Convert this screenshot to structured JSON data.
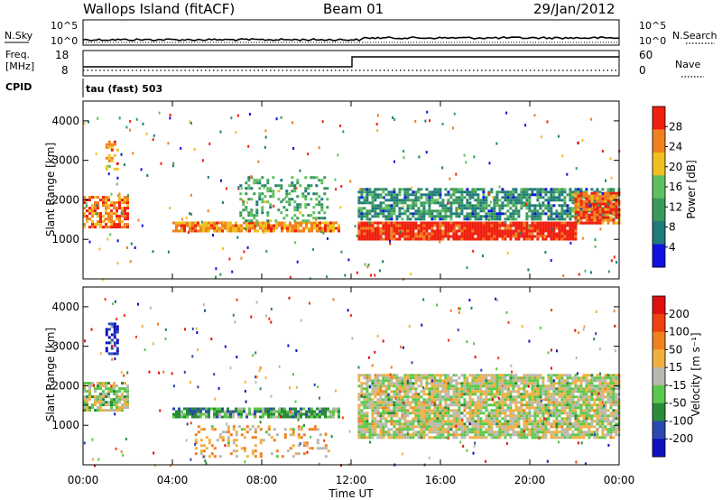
{
  "header": {
    "station": "Wallops Island (fitACF)",
    "beam": "Beam 01",
    "date": "29/Jan/2012"
  },
  "status_panels": {
    "nsky_label": "N.Sky",
    "nsearch_label": "N.Search",
    "noise_ticks_left": [
      "10^5",
      "10^0"
    ],
    "noise_ticks_right": [
      "10^5",
      "10^0"
    ],
    "freq_label_line1": "Freq.",
    "freq_label_line2": "[MHz]",
    "freq_ticks": [
      "18",
      "8"
    ],
    "nave_label": "Nave",
    "nave_ticks": [
      "60",
      "0"
    ],
    "cpid_label": "CPID",
    "cpid_value": "tau (fast) 503"
  },
  "chart_data": [
    {
      "type": "heatmap",
      "name": "power",
      "ylabel": "Slant Range [km]",
      "ylim": [
        0,
        4500
      ],
      "yticks": [
        "1000",
        "2000",
        "3000",
        "4000"
      ],
      "xlim_hours": [
        0,
        24
      ],
      "colorbar_label": "Power [dB]",
      "colorbar_ticks": [
        "28",
        "24",
        "20",
        "16",
        "12",
        "8",
        "4"
      ],
      "colorbar_range": [
        0,
        32
      ],
      "colors": [
        "#1010e0",
        "#1f7a7a",
        "#3a9a5a",
        "#60c060",
        "#f0c020",
        "#f08020",
        "#f02010"
      ],
      "features": [
        {
          "t0": 0.0,
          "t1": 2.0,
          "r0": 1300,
          "r1": 2100,
          "level": 0.8,
          "density": 0.7
        },
        {
          "t0": 1.0,
          "t1": 1.6,
          "r0": 2800,
          "r1": 3500,
          "level": 0.7,
          "density": 0.5
        },
        {
          "t0": 4.0,
          "t1": 11.5,
          "r0": 1200,
          "r1": 1450,
          "level": 0.75,
          "density": 0.85
        },
        {
          "t0": 7.0,
          "t1": 11.0,
          "r0": 1500,
          "r1": 2600,
          "level": 0.4,
          "density": 0.3
        },
        {
          "t0": 12.3,
          "t1": 22.0,
          "r0": 1000,
          "r1": 1450,
          "level": 0.95,
          "density": 0.95
        },
        {
          "t0": 12.3,
          "t1": 24.0,
          "r0": 1500,
          "r1": 2300,
          "level": 0.3,
          "density": 0.7
        },
        {
          "t0": 22.0,
          "t1": 24.0,
          "r0": 1400,
          "r1": 2200,
          "level": 0.85,
          "density": 0.9
        }
      ]
    },
    {
      "type": "heatmap",
      "name": "velocity",
      "ylabel": "Slant Range [km]",
      "ylim": [
        0,
        4500
      ],
      "yticks": [
        "1000",
        "2000",
        "3000",
        "4000"
      ],
      "xlim_hours": [
        0,
        24
      ],
      "colorbar_label": "Velocity [m s⁻¹]",
      "colorbar_ticks": [
        "200",
        "100",
        "50",
        "15",
        "-15",
        "-50",
        "-100",
        "-200"
      ],
      "colorbar_range": [
        -250,
        250
      ],
      "colors": [
        "#1010c0",
        "#2a4ab0",
        "#2a8a3a",
        "#5ac84a",
        "#b8b8b0",
        "#f0b040",
        "#f08020",
        "#f04010",
        "#e01010"
      ],
      "features": [
        {
          "t0": 0.0,
          "t1": 2.0,
          "r0": 1400,
          "r1": 2100,
          "level": 0.45,
          "density": 0.7
        },
        {
          "t0": 1.0,
          "t1": 1.6,
          "r0": 2800,
          "r1": 3600,
          "level": 0.05,
          "density": 0.6
        },
        {
          "t0": 4.0,
          "t1": 11.5,
          "r0": 1200,
          "r1": 1450,
          "level": 0.35,
          "density": 0.8
        },
        {
          "t0": 5.0,
          "t1": 11.0,
          "r0": 200,
          "r1": 1000,
          "level": 0.6,
          "density": 0.25
        },
        {
          "t0": 12.3,
          "t1": 24.0,
          "r0": 700,
          "r1": 2300,
          "level": 0.5,
          "density": 0.85
        }
      ]
    }
  ],
  "xaxis": {
    "ticks": [
      "00:00",
      "04:00",
      "08:00",
      "12:00",
      "16:00",
      "20:00",
      "00:00"
    ],
    "label": "Time UT"
  }
}
